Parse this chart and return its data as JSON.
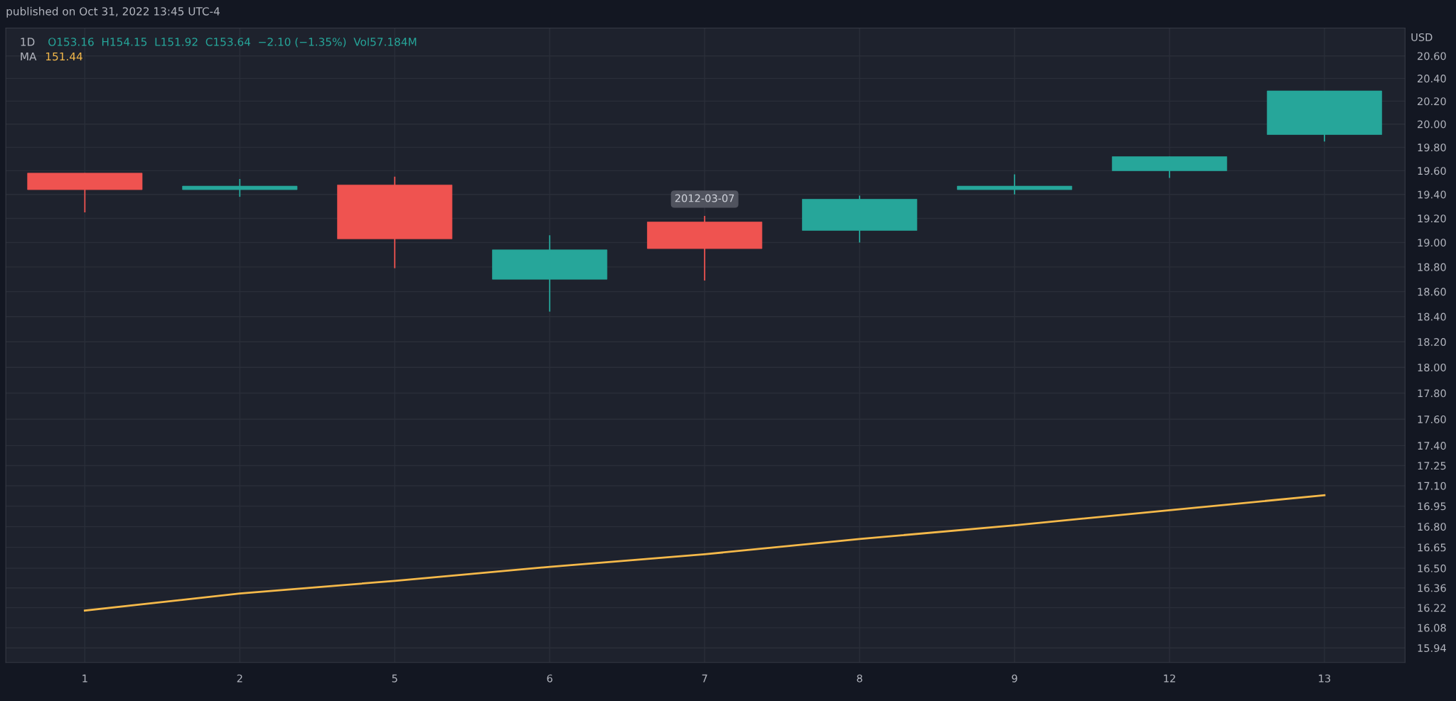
{
  "chart_data": {
    "type": "candlestick",
    "ylabel": "USD",
    "log": "y",
    "grid": true,
    "annotations": [
      "published on Oct 31, 2022 13:45 UTC-4",
      "1D",
      "O153.16  H154.15  L151.92  C153.64  −2.10 (−1.35%)  Vol57.184M",
      "151.44",
      {
        "text": "2012-03-07",
        "x": "7",
        "y": 19.22
      }
    ],
    "categories": [
      "1",
      "2",
      "5",
      "6",
      "7",
      "8",
      "9",
      "12",
      "13"
    ],
    "ohlc": [
      [
        19.58,
        19.58,
        19.25,
        19.44
      ],
      [
        19.44,
        19.53,
        19.38,
        19.47
      ],
      [
        19.48,
        19.55,
        18.79,
        19.03
      ],
      [
        18.7,
        19.06,
        18.44,
        18.94
      ],
      [
        19.17,
        19.22,
        18.69,
        18.95
      ],
      [
        19.1,
        19.39,
        19.0,
        19.36
      ],
      [
        19.44,
        19.57,
        19.4,
        19.47
      ],
      [
        19.6,
        19.72,
        19.54,
        19.72
      ],
      [
        19.91,
        20.29,
        19.85,
        20.29
      ]
    ],
    "colors": [
      "#ef5350",
      "#26a69a",
      "#ef5350",
      "#26a69a",
      "#ef5350",
      "#26a69a",
      "#26a69a",
      "#26a69a",
      "#26a69a"
    ],
    "series": [
      {
        "name": "MA",
        "type": "line",
        "color": "#f5b94a",
        "values": [
          16.2,
          16.32,
          16.41,
          16.51,
          16.6,
          16.71,
          16.81,
          16.92,
          17.03
        ]
      }
    ],
    "ylim": [
      15.84,
      20.85
    ],
    "yticks": [
      {
        "value": 15.94,
        "label": "15.94"
      },
      {
        "value": 16.08,
        "label": "16.08"
      },
      {
        "value": 16.22,
        "label": "16.22"
      },
      {
        "value": 16.36,
        "label": "16.36"
      },
      {
        "value": 16.5,
        "label": "16.50"
      },
      {
        "value": 16.65,
        "label": "16.65"
      },
      {
        "value": 16.8,
        "label": "16.80"
      },
      {
        "value": 16.95,
        "label": "16.95"
      },
      {
        "value": 17.1,
        "label": "17.10"
      },
      {
        "value": 17.25,
        "label": "17.25"
      },
      {
        "value": 17.4,
        "label": "17.40"
      },
      {
        "value": 17.6,
        "label": "17.60"
      },
      {
        "value": 17.8,
        "label": "17.80"
      },
      {
        "value": 18,
        "label": "18.00"
      },
      {
        "value": 18.2,
        "label": "18.20"
      },
      {
        "value": 18.4,
        "label": "18.40"
      },
      {
        "value": 18.6,
        "label": "18.60"
      },
      {
        "value": 18.8,
        "label": "18.80"
      },
      {
        "value": 19,
        "label": "19.00"
      },
      {
        "value": 19.2,
        "label": "19.20"
      },
      {
        "value": 19.4,
        "label": "19.40"
      },
      {
        "value": 19.6,
        "label": "19.60"
      },
      {
        "value": 19.8,
        "label": "19.80"
      },
      {
        "value": 20,
        "label": "20.00"
      },
      {
        "value": 20.2,
        "label": "20.20"
      },
      {
        "value": 20.4,
        "label": "20.40"
      },
      {
        "value": 20.6,
        "label": "20.60"
      }
    ]
  }
}
